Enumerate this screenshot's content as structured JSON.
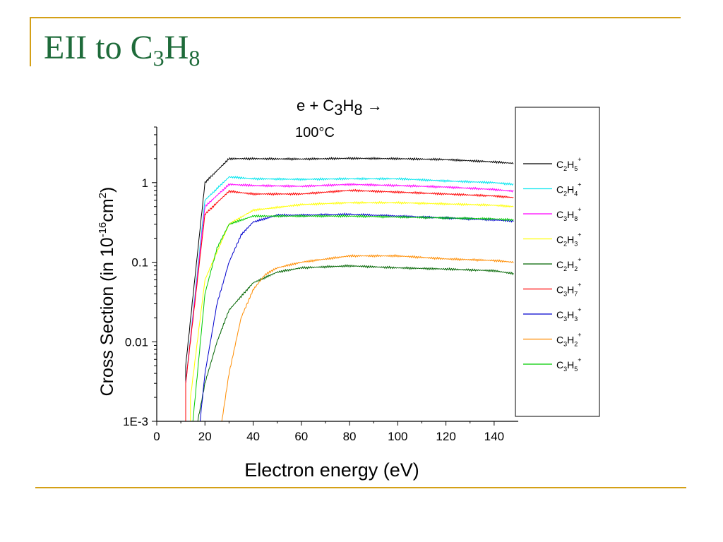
{
  "slide": {
    "title_prefix": "EII to C",
    "title_sub1": "3",
    "title_mid": "H",
    "title_sub2": "8"
  },
  "chart_data": {
    "type": "line",
    "title_line1": {
      "pre": "e + C",
      "s1": "3",
      "mid": "H",
      "s2": "8",
      "post": " →"
    },
    "title_line2": "100°C",
    "xlabel": "Electron energy (eV)",
    "ylabel": {
      "pre": "Cross Section (in 10",
      "exp": "-16",
      "mid": "cm",
      "exp2": "2",
      "post": ")"
    },
    "xlim": [
      0,
      150
    ],
    "ylim": [
      0.001,
      5
    ],
    "yscale": "log",
    "xticks": [
      0,
      20,
      40,
      60,
      80,
      100,
      120,
      140
    ],
    "yticks": [
      {
        "value": 0.001,
        "label": "1E-3"
      },
      {
        "value": 0.01,
        "label": "0.01"
      },
      {
        "value": 0.1,
        "label": "0.1"
      },
      {
        "value": 1,
        "label": "1"
      }
    ],
    "grid": false,
    "legend_position": "right",
    "series": [
      {
        "name": "C2H5+",
        "n": [
          "C",
          "2",
          "H",
          "5",
          "+"
        ],
        "color": "#000000",
        "onset": 11.5,
        "width": 3.2,
        "rise_end": 28,
        "peak": 2.05,
        "x": [
          12,
          20,
          30,
          40,
          60,
          80,
          100,
          120,
          140,
          148
        ],
        "y": [
          0.005,
          1.0,
          2.0,
          2.0,
          1.98,
          2.02,
          2.0,
          1.95,
          1.82,
          1.75
        ]
      },
      {
        "name": "C2H4+",
        "n": [
          "C",
          "2",
          "H",
          "4",
          "+"
        ],
        "color": "#00e5ee",
        "onset": 11.8,
        "width": 3.4,
        "rise_end": 30,
        "peak": 1.2,
        "x": [
          12,
          20,
          30,
          40,
          60,
          80,
          100,
          120,
          140,
          148
        ],
        "y": [
          0.003,
          0.6,
          1.18,
          1.12,
          1.1,
          1.12,
          1.12,
          1.05,
          1.0,
          0.95
        ]
      },
      {
        "name": "C3H8+",
        "n": [
          "C",
          "3",
          "H",
          "8",
          "+"
        ],
        "color": "#ff00ff",
        "onset": 12.0,
        "width": 3.5,
        "rise_end": 30,
        "peak": 0.95,
        "x": [
          12,
          20,
          30,
          40,
          60,
          80,
          100,
          120,
          140,
          148
        ],
        "y": [
          0.003,
          0.5,
          0.95,
          0.92,
          0.9,
          0.95,
          0.92,
          0.88,
          0.82,
          0.78
        ]
      },
      {
        "name": "C2H3+",
        "n": [
          "C",
          "2",
          "H",
          "3",
          "+"
        ],
        "color": "#ffff00",
        "onset": 13.5,
        "width": 4.0,
        "rise_end": 40,
        "peak": 0.55,
        "x": [
          14,
          20,
          30,
          40,
          60,
          80,
          100,
          120,
          140,
          148
        ],
        "y": [
          0.002,
          0.06,
          0.3,
          0.45,
          0.53,
          0.56,
          0.56,
          0.54,
          0.52,
          0.5
        ]
      },
      {
        "name": "C2H2+",
        "n": [
          "C",
          "2",
          "H",
          "2",
          "+"
        ],
        "color": "#006400",
        "onset": 16.5,
        "width": 6.0,
        "rise_end": 50,
        "peak": 0.09,
        "x": [
          17,
          20,
          25,
          30,
          40,
          50,
          60,
          80,
          100,
          120,
          140,
          148
        ],
        "y": [
          0.001,
          0.003,
          0.01,
          0.025,
          0.055,
          0.075,
          0.085,
          0.09,
          0.085,
          0.082,
          0.078,
          0.072
        ]
      },
      {
        "name": "C3H7+",
        "n": [
          "C",
          "3",
          "H",
          "7",
          "+"
        ],
        "color": "#ff0000",
        "onset": 11.5,
        "width": 3.3,
        "rise_end": 30,
        "peak": 0.8,
        "x": [
          12,
          20,
          30,
          40,
          60,
          80,
          100,
          120,
          140,
          148
        ],
        "y": [
          0.003,
          0.4,
          0.78,
          0.72,
          0.72,
          0.8,
          0.76,
          0.72,
          0.68,
          0.65
        ]
      },
      {
        "name": "C3H3+",
        "n": [
          "C",
          "3",
          "H",
          "3",
          "+"
        ],
        "color": "#0000cd",
        "onset": 17.5,
        "width": 5.5,
        "rise_end": 48,
        "peak": 0.4,
        "x": [
          18,
          20,
          25,
          30,
          35,
          40,
          50,
          60,
          80,
          100,
          120,
          140,
          148
        ],
        "y": [
          0.001,
          0.004,
          0.03,
          0.1,
          0.22,
          0.32,
          0.39,
          0.39,
          0.4,
          0.38,
          0.36,
          0.34,
          0.33
        ]
      },
      {
        "name": "C3H2+",
        "n": [
          "C",
          "3",
          "H",
          "2",
          "+"
        ],
        "color": "#ff8c00",
        "onset": 26.5,
        "width": 8.0,
        "rise_end": 70,
        "peak": 0.12,
        "x": [
          27,
          30,
          35,
          40,
          45,
          50,
          60,
          80,
          100,
          120,
          140,
          148
        ],
        "y": [
          0.001,
          0.004,
          0.02,
          0.045,
          0.07,
          0.085,
          0.1,
          0.12,
          0.12,
          0.11,
          0.105,
          0.1
        ]
      },
      {
        "name": "C3H5+",
        "n": [
          "C",
          "3",
          "H",
          "5",
          "+"
        ],
        "color": "#00cc00",
        "onset": 14.5,
        "width": 4.5,
        "rise_end": 40,
        "peak": 0.39,
        "x": [
          15,
          20,
          25,
          30,
          40,
          60,
          80,
          100,
          120,
          140,
          148
        ],
        "y": [
          0.001,
          0.04,
          0.15,
          0.3,
          0.38,
          0.38,
          0.38,
          0.37,
          0.36,
          0.35,
          0.34
        ]
      }
    ]
  }
}
